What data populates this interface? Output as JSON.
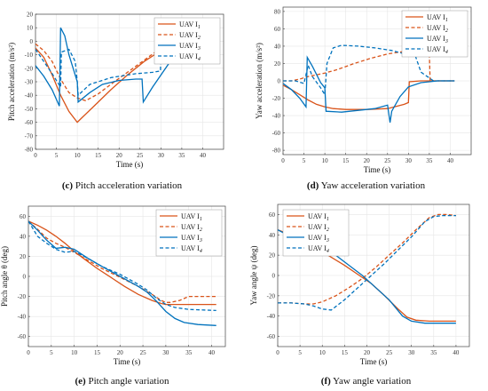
{
  "colors": {
    "uav1": "#d95319",
    "uav2": "#d95319",
    "uav3": "#0072bd",
    "uav4": "#0072bd",
    "grid": "#e6e6e6",
    "axis": "#444444"
  },
  "captions": {
    "c": {
      "tag": "(c)",
      "text": "Pitch acceleration variation"
    },
    "d": {
      "tag": "(d)",
      "text": "Yaw acceleration variation"
    },
    "e": {
      "tag": "(e)",
      "text": "Pitch angle variation"
    },
    "f": {
      "tag": "(f)",
      "text": "Yaw angle variation"
    }
  },
  "chart_data": [
    {
      "id": "c",
      "type": "line",
      "xlabel": "Time (s)",
      "ylabel": "Pitch acceleration (m/s²)",
      "xlim": [
        0,
        45
      ],
      "ylim": [
        -80,
        20
      ],
      "xticks": [
        0,
        5,
        10,
        15,
        20,
        25,
        30,
        35,
        40
      ],
      "yticks": [
        -80,
        -70,
        -60,
        -50,
        -40,
        -30,
        -20,
        -10,
        0,
        10,
        20
      ],
      "grid": true,
      "legend_position": "top-right",
      "series": [
        {
          "name": "UAV I1",
          "label_main": "UAV I",
          "label_sub": "1",
          "style": "solid",
          "color": "#d95319",
          "x": [
            0,
            2,
            4,
            6,
            8,
            10,
            11,
            14,
            18,
            22,
            26,
            30,
            34,
            38,
            41
          ],
          "y": [
            -5,
            -12,
            -25,
            -40,
            -52,
            -60,
            -57,
            -48,
            -36,
            -25,
            -15,
            -7,
            -2,
            0,
            0
          ]
        },
        {
          "name": "UAV I2",
          "label_main": "UAV I",
          "label_sub": "2",
          "style": "dashed",
          "color": "#d95319",
          "x": [
            0,
            2,
            4,
            6,
            8,
            10,
            12,
            15,
            18,
            22,
            26,
            30,
            34,
            35,
            35.2,
            37,
            41
          ],
          "y": [
            -2,
            -7,
            -15,
            -28,
            -38,
            -42,
            -44,
            -39,
            -32,
            -23,
            -14,
            -5,
            10,
            11,
            0,
            0,
            0
          ]
        },
        {
          "name": "UAV I3",
          "label_main": "UAV I",
          "label_sub": "3",
          "style": "solid",
          "color": "#0072bd",
          "x": [
            0,
            2,
            4,
            5.7,
            6,
            7,
            8,
            10,
            10.2,
            13,
            16,
            20,
            24,
            25.5,
            25.8,
            28,
            32,
            36,
            39,
            41
          ],
          "y": [
            -18,
            -26,
            -36,
            -48,
            10,
            4,
            -10,
            -30,
            -45,
            -38,
            -32,
            -29,
            -28,
            -28,
            -45,
            -34,
            -16,
            -5,
            -1,
            0
          ]
        },
        {
          "name": "UAV I4",
          "label_main": "UAV I",
          "label_sub": "4",
          "style": "dashed",
          "color": "#0072bd",
          "x": [
            0,
            2,
            4,
            6,
            6.2,
            8,
            9.5,
            10,
            10.2,
            13,
            18,
            24,
            28,
            29.9,
            30,
            32,
            35,
            38,
            41
          ],
          "y": [
            -6,
            -15,
            -24,
            -34,
            -8,
            -6,
            -15,
            -30,
            -40,
            -32,
            -27,
            -24,
            -23,
            -22,
            -5,
            -3,
            -1,
            0,
            0
          ]
        }
      ]
    },
    {
      "id": "d",
      "type": "line",
      "xlabel": "Time (s)",
      "ylabel": "Yaw acceleration (m/s²)",
      "xlim": [
        0,
        45
      ],
      "ylim": [
        -85,
        85
      ],
      "xticks": [
        0,
        5,
        10,
        15,
        20,
        25,
        30,
        35,
        40
      ],
      "yticks": [
        -80,
        -60,
        -40,
        -20,
        0,
        20,
        40,
        60,
        80
      ],
      "grid": true,
      "legend_position": "top-right",
      "series": [
        {
          "name": "UAV I1",
          "label_main": "UAV I",
          "label_sub": "1",
          "style": "solid",
          "color": "#d95319",
          "x": [
            0,
            2,
            4,
            6,
            8,
            10,
            12,
            15,
            20,
            25,
            29,
            30,
            30.2,
            33,
            37,
            41
          ],
          "y": [
            -5,
            -10,
            -16,
            -22,
            -27,
            -30,
            -32,
            -33,
            -33,
            -32,
            -27,
            -25,
            -1,
            0,
            0,
            0
          ]
        },
        {
          "name": "UAV I2",
          "label_main": "UAV I",
          "label_sub": "2",
          "style": "dashed",
          "color": "#d95319",
          "x": [
            0,
            2,
            4,
            6,
            8,
            10,
            13,
            17,
            21,
            25,
            29,
            32,
            35,
            35.2,
            37,
            41
          ],
          "y": [
            0,
            0,
            2,
            5,
            7,
            9,
            13,
            20,
            26,
            31,
            34,
            34,
            30,
            0,
            0,
            0
          ]
        },
        {
          "name": "UAV I3",
          "label_main": "UAV I",
          "label_sub": "3",
          "style": "solid",
          "color": "#0072bd",
          "x": [
            0,
            2,
            4,
            5.5,
            5.8,
            7,
            9,
            10,
            10.3,
            14,
            18,
            22,
            25,
            25.6,
            26,
            28,
            30,
            33,
            37,
            41
          ],
          "y": [
            -3,
            -10,
            -20,
            -30,
            27,
            17,
            -2,
            -8,
            -35,
            -36,
            -34,
            -32,
            -28,
            -48,
            -35,
            -18,
            -7,
            -2,
            0,
            0
          ]
        },
        {
          "name": "UAV I4",
          "label_main": "UAV I",
          "label_sub": "4",
          "style": "dashed",
          "color": "#0072bd",
          "x": [
            0,
            3,
            5,
            6,
            7,
            9,
            10,
            10.5,
            12,
            14,
            18,
            22,
            26,
            30,
            30.3,
            31,
            33,
            36,
            38,
            41
          ],
          "y": [
            0,
            0,
            -3,
            18,
            5,
            -8,
            -16,
            20,
            38,
            41,
            40,
            38,
            35,
            30,
            40,
            38,
            10,
            0,
            0,
            0
          ]
        }
      ]
    },
    {
      "id": "e",
      "type": "line",
      "xlabel": "Time (s)",
      "ylabel": "Pitch angle θ (deg)",
      "xlim": [
        0,
        43
      ],
      "ylim": [
        -70,
        70
      ],
      "xticks": [
        0,
        5,
        10,
        15,
        20,
        25,
        30,
        35,
        40
      ],
      "yticks": [
        -60,
        -40,
        -20,
        0,
        20,
        40,
        60
      ],
      "grid": true,
      "legend_position": "top-right",
      "series": [
        {
          "name": "UAV I1",
          "label_main": "UAV I",
          "label_sub": "1",
          "style": "solid",
          "color": "#d95319",
          "x": [
            0,
            2,
            4,
            6,
            8,
            10,
            12,
            15,
            18,
            21,
            24,
            27,
            29,
            30,
            35,
            41
          ],
          "y": [
            55,
            51,
            46,
            40,
            33,
            25,
            18,
            8,
            -1,
            -10,
            -18,
            -24,
            -27,
            -28,
            -28,
            -28
          ]
        },
        {
          "name": "UAV I2",
          "label_main": "UAV I",
          "label_sub": "2",
          "style": "dashed",
          "color": "#d95319",
          "x": [
            0,
            2,
            4,
            6,
            8,
            10,
            13,
            16,
            20,
            24,
            27,
            29,
            30,
            31,
            33,
            35,
            41
          ],
          "y": [
            55,
            47,
            38,
            33,
            29,
            24,
            16,
            8,
            -1,
            -10,
            -18,
            -24,
            -26,
            -26,
            -24,
            -20,
            -20
          ]
        },
        {
          "name": "UAV I3",
          "label_main": "UAV I",
          "label_sub": "3",
          "style": "solid",
          "color": "#0072bd",
          "x": [
            0,
            2,
            4,
            6,
            8,
            10,
            13,
            16,
            20,
            24,
            26,
            28,
            30,
            32,
            34,
            37,
            41
          ],
          "y": [
            55,
            46,
            36,
            28,
            29,
            27,
            18,
            10,
            0,
            -10,
            -16,
            -25,
            -35,
            -42,
            -46,
            -48,
            -49
          ]
        },
        {
          "name": "UAV I4",
          "label_main": "UAV I",
          "label_sub": "4",
          "style": "dashed",
          "color": "#0072bd",
          "x": [
            0,
            2,
            4,
            6,
            8,
            10,
            13,
            16,
            20,
            24,
            26,
            28,
            30,
            32,
            35,
            41
          ],
          "y": [
            55,
            40,
            33,
            27,
            24,
            25,
            18,
            10,
            2,
            -8,
            -14,
            -22,
            -28,
            -31,
            -33,
            -34
          ]
        }
      ]
    },
    {
      "id": "f",
      "type": "line",
      "xlabel": "Time (s)",
      "ylabel": "Yaw angle ψ (deg)",
      "xlim": [
        0,
        43
      ],
      "ylim": [
        -70,
        70
      ],
      "xticks": [
        0,
        5,
        10,
        15,
        20,
        25,
        30,
        35,
        40
      ],
      "yticks": [
        -60,
        -40,
        -20,
        0,
        20,
        40,
        60
      ],
      "grid": true,
      "legend_position": "top-left",
      "series": [
        {
          "name": "UAV I1",
          "label_main": "UAV I",
          "label_sub": "1",
          "style": "solid",
          "color": "#d95319",
          "x": [
            0,
            3,
            6,
            9,
            12,
            15,
            18,
            21,
            24,
            27,
            29,
            31,
            34,
            37,
            40
          ],
          "y": [
            45,
            40,
            33,
            26,
            18,
            10,
            1,
            -8,
            -20,
            -33,
            -41,
            -44,
            -45,
            -45,
            -45
          ]
        },
        {
          "name": "UAV I2",
          "label_main": "UAV I",
          "label_sub": "2",
          "style": "dashed",
          "color": "#d95319",
          "x": [
            0,
            3,
            6,
            8,
            10,
            13,
            16,
            19,
            22,
            25,
            28,
            31,
            34,
            36,
            38,
            40
          ],
          "y": [
            -27,
            -27,
            -28,
            -28,
            -26,
            -20,
            -12,
            -3,
            8,
            20,
            32,
            45,
            57,
            60,
            60,
            59
          ]
        },
        {
          "name": "UAV I3",
          "label_main": "UAV I",
          "label_sub": "3",
          "style": "solid",
          "color": "#0072bd",
          "x": [
            0,
            3,
            6,
            8,
            10,
            13,
            16,
            19,
            22,
            25,
            28,
            30,
            33,
            36,
            40
          ],
          "y": [
            45,
            38,
            26,
            30,
            30,
            20,
            10,
            0,
            -12,
            -24,
            -40,
            -45,
            -47,
            -47,
            -47
          ]
        },
        {
          "name": "UAV I4",
          "label_main": "UAV I",
          "label_sub": "4",
          "style": "dashed",
          "color": "#0072bd",
          "x": [
            0,
            3,
            6,
            8,
            10,
            12,
            15,
            18,
            21,
            24,
            27,
            30,
            33,
            35,
            37,
            40
          ],
          "y": [
            -27,
            -27,
            -28,
            -30,
            -33,
            -34,
            -24,
            -12,
            0,
            12,
            25,
            38,
            53,
            58,
            59,
            59
          ]
        }
      ]
    }
  ]
}
